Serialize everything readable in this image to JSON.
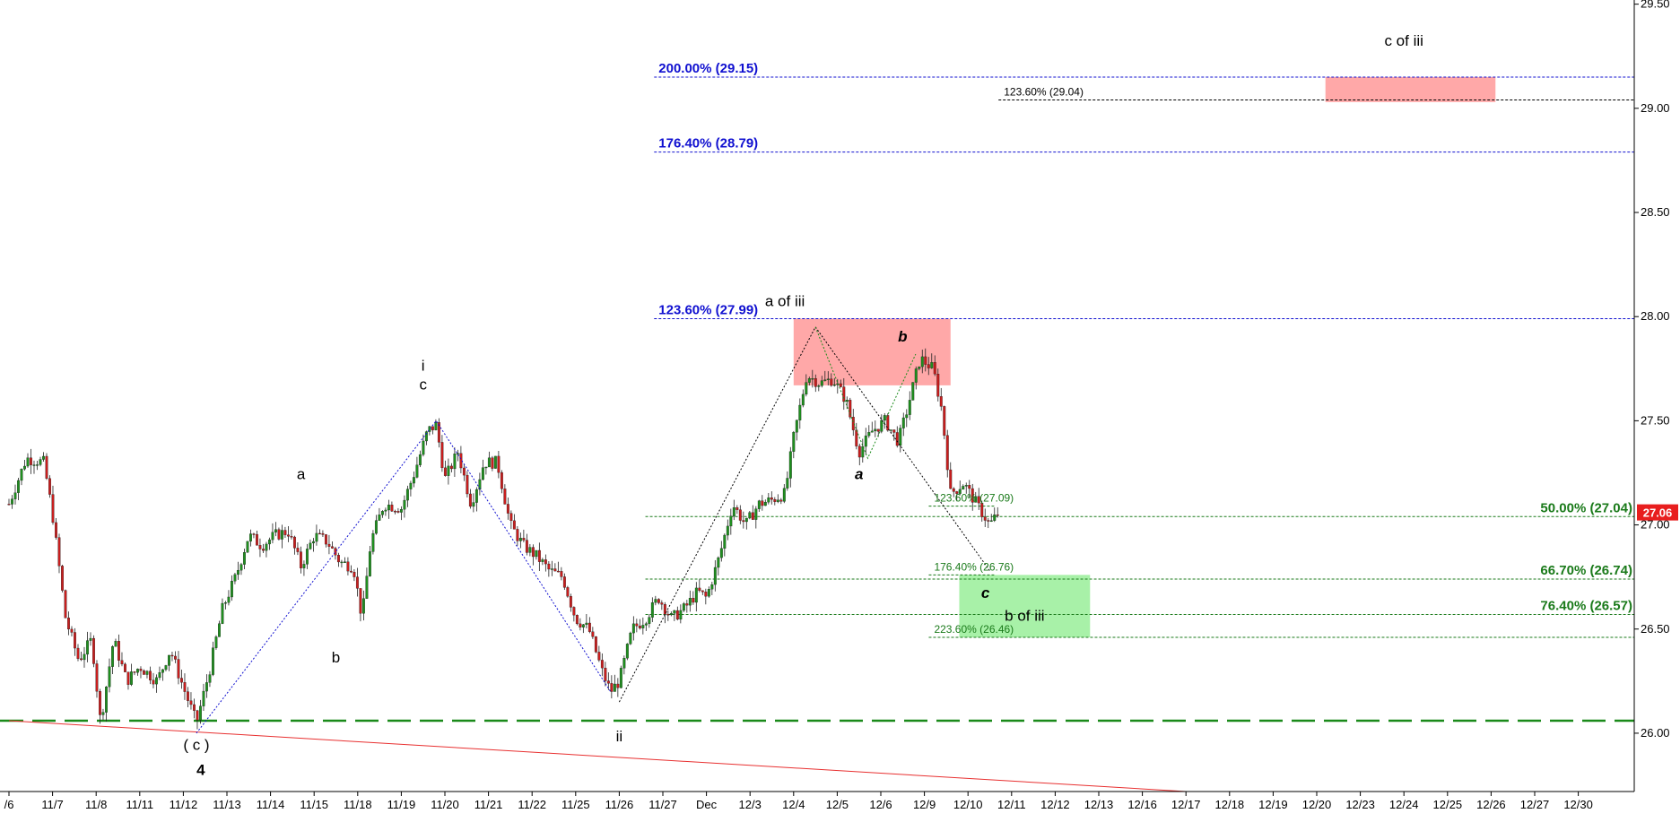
{
  "chart_data": {
    "type": "candlestick",
    "title": "",
    "xlabel": "",
    "ylabel": "",
    "ylim": [
      25.72,
      29.52
    ],
    "y_ticks": [
      "26.00",
      "26.50",
      "27.00",
      "27.50",
      "28.00",
      "28.50",
      "29.00",
      "29.50"
    ],
    "x_ticks": [
      "11/6",
      "11/7",
      "11/8",
      "11/11",
      "11/12",
      "11/13",
      "11/14",
      "11/15",
      "11/18",
      "11/19",
      "11/20",
      "11/21",
      "11/22",
      "11/25",
      "11/26",
      "11/27",
      "Dec",
      "12/3",
      "12/4",
      "12/5",
      "12/6",
      "12/9",
      "12/10",
      "12/11",
      "12/12",
      "12/13",
      "12/16",
      "12/17",
      "12/18",
      "12/19",
      "12/20",
      "12/23",
      "12/24",
      "12/25",
      "12/26",
      "12/27",
      "12/30"
    ],
    "x_tick_display": [
      "/6",
      "11/7",
      "11/8",
      "11/11",
      "11/12",
      "11/13",
      "11/14",
      "11/15",
      "11/18",
      "11/19",
      "11/20",
      "11/21",
      "11/22",
      "11/25",
      "11/26",
      "11/27",
      "Dec",
      "12/3",
      "12/4",
      "12/5",
      "12/6",
      "12/9",
      "12/10",
      "12/11",
      "12/12",
      "12/13",
      "12/16",
      "12/17",
      "12/18",
      "12/19",
      "12/20",
      "12/23",
      "12/24",
      "12/25",
      "12/26",
      "12/27",
      "12/30"
    ],
    "last_price": "27.06",
    "last_price_value": 27.06,
    "price_path": [
      {
        "x": 0.0,
        "y": 27.1
      },
      {
        "x": 0.4,
        "y": 27.32
      },
      {
        "x": 0.8,
        "y": 27.3
      },
      {
        "x": 1.0,
        "y": 27.05
      },
      {
        "x": 1.3,
        "y": 26.55
      },
      {
        "x": 1.6,
        "y": 26.35
      },
      {
        "x": 1.9,
        "y": 26.45
      },
      {
        "x": 2.1,
        "y": 26.05
      },
      {
        "x": 2.4,
        "y": 26.45
      },
      {
        "x": 2.7,
        "y": 26.25
      },
      {
        "x": 3.0,
        "y": 26.32
      },
      {
        "x": 3.4,
        "y": 26.25
      },
      {
        "x": 3.7,
        "y": 26.4
      },
      {
        "x": 4.0,
        "y": 26.22
      },
      {
        "x": 4.3,
        "y": 26.05
      },
      {
        "x": 4.6,
        "y": 26.3
      },
      {
        "x": 4.9,
        "y": 26.6
      },
      {
        "x": 5.2,
        "y": 26.75
      },
      {
        "x": 5.5,
        "y": 26.95
      },
      {
        "x": 5.8,
        "y": 26.9
      },
      {
        "x": 6.1,
        "y": 26.95
      },
      {
        "x": 6.4,
        "y": 26.97
      },
      {
        "x": 6.7,
        "y": 26.8
      },
      {
        "x": 7.0,
        "y": 26.95
      },
      {
        "x": 7.3,
        "y": 26.92
      },
      {
        "x": 7.6,
        "y": 26.82
      },
      {
        "x": 7.9,
        "y": 26.8
      },
      {
        "x": 8.1,
        "y": 26.55
      },
      {
        "x": 8.3,
        "y": 26.92
      },
      {
        "x": 8.6,
        "y": 27.1
      },
      {
        "x": 9.0,
        "y": 27.08
      },
      {
        "x": 9.3,
        "y": 27.25
      },
      {
        "x": 9.6,
        "y": 27.45
      },
      {
        "x": 9.8,
        "y": 27.48
      },
      {
        "x": 10.0,
        "y": 27.22
      },
      {
        "x": 10.3,
        "y": 27.35
      },
      {
        "x": 10.6,
        "y": 27.1
      },
      {
        "x": 10.9,
        "y": 27.3
      },
      {
        "x": 11.2,
        "y": 27.3
      },
      {
        "x": 11.5,
        "y": 27.0
      },
      {
        "x": 11.8,
        "y": 26.9
      },
      {
        "x": 12.1,
        "y": 26.85
      },
      {
        "x": 12.4,
        "y": 26.78
      },
      {
        "x": 12.7,
        "y": 26.75
      },
      {
        "x": 13.0,
        "y": 26.55
      },
      {
        "x": 13.3,
        "y": 26.5
      },
      {
        "x": 13.6,
        "y": 26.3
      },
      {
        "x": 13.8,
        "y": 26.2
      },
      {
        "x": 14.0,
        "y": 26.25
      },
      {
        "x": 14.3,
        "y": 26.5
      },
      {
        "x": 14.6,
        "y": 26.55
      },
      {
        "x": 14.9,
        "y": 26.65
      },
      {
        "x": 15.2,
        "y": 26.55
      },
      {
        "x": 15.5,
        "y": 26.6
      },
      {
        "x": 15.8,
        "y": 26.68
      },
      {
        "x": 16.0,
        "y": 26.65
      },
      {
        "x": 16.3,
        "y": 26.85
      },
      {
        "x": 16.6,
        "y": 27.1
      },
      {
        "x": 16.9,
        "y": 27.0
      },
      {
        "x": 17.2,
        "y": 27.1
      },
      {
        "x": 17.5,
        "y": 27.12
      },
      {
        "x": 17.8,
        "y": 27.15
      },
      {
        "x": 18.0,
        "y": 27.42
      },
      {
        "x": 18.3,
        "y": 27.72
      },
      {
        "x": 18.6,
        "y": 27.68
      },
      {
        "x": 18.9,
        "y": 27.7
      },
      {
        "x": 19.2,
        "y": 27.6
      },
      {
        "x": 19.5,
        "y": 27.35
      },
      {
        "x": 19.8,
        "y": 27.45
      },
      {
        "x": 20.1,
        "y": 27.5
      },
      {
        "x": 20.4,
        "y": 27.4
      },
      {
        "x": 20.6,
        "y": 27.55
      },
      {
        "x": 20.9,
        "y": 27.8
      },
      {
        "x": 21.2,
        "y": 27.75
      },
      {
        "x": 21.4,
        "y": 27.55
      },
      {
        "x": 21.6,
        "y": 27.15
      },
      {
        "x": 21.9,
        "y": 27.2
      },
      {
        "x": 22.2,
        "y": 27.1
      },
      {
        "x": 22.5,
        "y": 27.0
      },
      {
        "x": 22.7,
        "y": 27.06
      }
    ],
    "wave_lines": [
      {
        "color": "#1010d0",
        "points": [
          {
            "x": 4.3,
            "y": 26.0
          },
          {
            "x": 9.8,
            "y": 27.5
          },
          {
            "x": 13.8,
            "y": 26.2
          }
        ]
      },
      {
        "color": "#000000",
        "points": [
          {
            "x": 14.0,
            "y": 26.15
          },
          {
            "x": 18.5,
            "y": 27.95
          },
          {
            "x": 22.5,
            "y": 26.78
          }
        ]
      },
      {
        "color": "#1a8a1a",
        "points": [
          {
            "x": 18.5,
            "y": 27.95
          },
          {
            "x": 19.7,
            "y": 27.32
          },
          {
            "x": 20.8,
            "y": 27.82
          }
        ]
      }
    ],
    "support_line": {
      "y": 26.06,
      "label": ""
    },
    "trend_line": {
      "x1": 0.0,
      "y1": 26.06,
      "x2": 27.0,
      "y2": 25.72
    },
    "fib_levels": [
      {
        "label": "200.00% (29.15)",
        "value": 29.15,
        "color": "#1010d0",
        "x_from": 14.8,
        "x_to": 37.4,
        "label_style": "blue"
      },
      {
        "label": "123.60% (29.04)",
        "value": 29.04,
        "color": "#000000",
        "x_from": 22.7,
        "x_to": 37.4,
        "label_style": "black-small"
      },
      {
        "label": "176.40% (28.79)",
        "value": 28.79,
        "color": "#1010d0",
        "x_from": 14.8,
        "x_to": 37.4,
        "label_style": "blue"
      },
      {
        "label": "123.60% (27.99)",
        "value": 27.99,
        "color": "#1010d0",
        "x_from": 14.8,
        "x_to": 37.4,
        "label_style": "blue"
      },
      {
        "label": "123.60% (27.09)",
        "value": 27.09,
        "color": "#1a7a1a",
        "x_from": 21.1,
        "x_to": 22.6,
        "label_style": "green-small"
      },
      {
        "label": "50.00% (27.04)",
        "value": 27.04,
        "color": "#1a7a1a",
        "x_from": 14.6,
        "x_to": 37.4,
        "label_style": "green"
      },
      {
        "label": "176.40% (26.76)",
        "value": 26.76,
        "color": "#1a7a1a",
        "x_from": 21.1,
        "x_to": 22.6,
        "label_style": "green-small"
      },
      {
        "label": "66.70% (26.74)",
        "value": 26.74,
        "color": "#1a7a1a",
        "x_from": 14.6,
        "x_to": 37.4,
        "label_style": "green"
      },
      {
        "label": "76.40% (26.57)",
        "value": 26.57,
        "color": "#1a7a1a",
        "x_from": 14.6,
        "x_to": 37.4,
        "label_style": "green"
      },
      {
        "label": "223.60% (26.46)",
        "value": 26.46,
        "color": "#1a7a1a",
        "x_from": 21.1,
        "x_to": 37.4,
        "label_style": "green-small"
      }
    ],
    "zones": [
      {
        "color": "#ff9999",
        "x_from": 18.0,
        "x_to": 21.6,
        "y_from": 27.67,
        "y_to": 27.99
      },
      {
        "color": "#ff9999",
        "x_from": 30.2,
        "x_to": 34.1,
        "y_from": 29.03,
        "y_to": 29.15
      },
      {
        "color": "#99ee99",
        "x_from": 21.8,
        "x_to": 24.8,
        "y_from": 26.46,
        "y_to": 26.76
      }
    ],
    "wave_labels": [
      {
        "text": "a",
        "x": 6.7,
        "y": 27.22,
        "color": "#000000",
        "style": "normal"
      },
      {
        "text": "b",
        "x": 7.5,
        "y": 26.34,
        "color": "#000000",
        "style": "normal"
      },
      {
        "text": "i",
        "x": 9.5,
        "y": 27.74,
        "color": "#000000",
        "style": "normal"
      },
      {
        "text": "c",
        "x": 9.5,
        "y": 27.65,
        "color": "#000000",
        "style": "normal"
      },
      {
        "text": "( c )",
        "x": 4.3,
        "y": 25.92,
        "color": "#1010d0",
        "style": "normal"
      },
      {
        "text": "4",
        "x": 4.4,
        "y": 25.8,
        "color": "#1010d0",
        "style": "bold"
      },
      {
        "text": "ii",
        "x": 14.0,
        "y": 25.96,
        "color": "#000000",
        "style": "normal"
      },
      {
        "text": "a of iii",
        "x": 17.8,
        "y": 28.05,
        "color": "#000000",
        "style": "normal"
      },
      {
        "text": "b",
        "x": 20.5,
        "y": 27.88,
        "color": "#8b0000",
        "style": "bold-italic"
      },
      {
        "text": "a",
        "x": 19.5,
        "y": 27.22,
        "color": "#8b0000",
        "style": "bold-italic"
      },
      {
        "text": "c",
        "x": 22.4,
        "y": 26.65,
        "color": "#8b0000",
        "style": "bold-italic"
      },
      {
        "text": "b of iii",
        "x": 23.3,
        "y": 26.54,
        "color": "#000000",
        "style": "normal"
      },
      {
        "text": "c of iii",
        "x": 32.0,
        "y": 29.3,
        "color": "#000000",
        "style": "normal"
      }
    ]
  }
}
